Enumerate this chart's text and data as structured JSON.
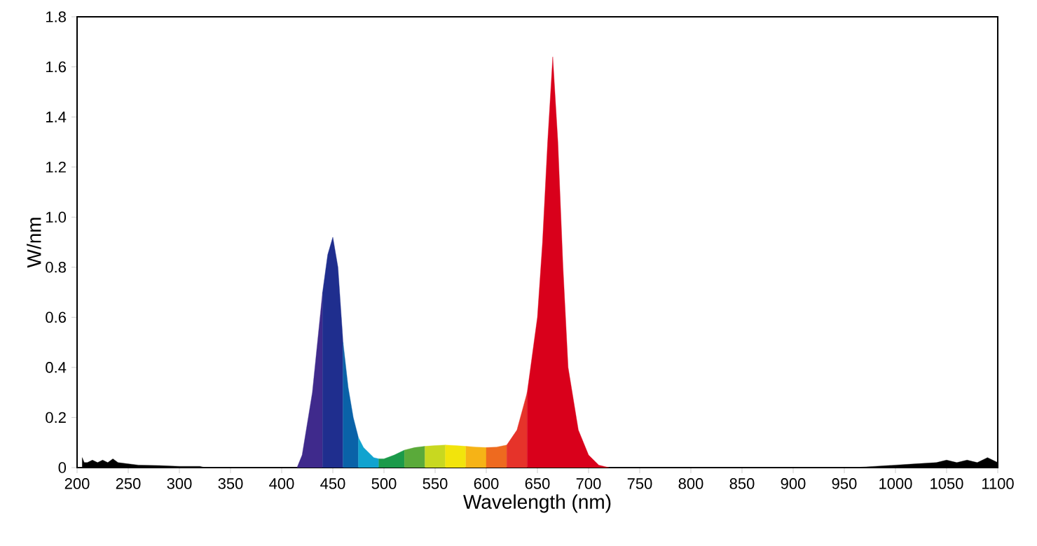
{
  "chart_data": {
    "type": "area",
    "xlabel": "Wavelength (nm)",
    "ylabel": "W/nm",
    "xlim": [
      200,
      1100
    ],
    "ylim": [
      0,
      1.8
    ],
    "xticks": [
      200,
      250,
      300,
      350,
      400,
      450,
      500,
      550,
      600,
      650,
      700,
      750,
      800,
      850,
      900,
      950,
      1000,
      1050,
      1100
    ],
    "yticks": [
      0,
      0.2,
      0.4,
      0.6,
      0.8,
      {
        "value": 1,
        "label": "1.0"
      },
      1.2,
      1.4,
      1.6,
      1.8
    ],
    "series": [
      {
        "color": "#000000",
        "x": [
          205,
          207,
          210,
          215,
          220,
          225,
          230,
          235,
          240,
          250,
          260,
          280,
          300,
          320,
          325
        ],
        "values": [
          0.04,
          0.02,
          0.02,
          0.03,
          0.02,
          0.03,
          0.02,
          0.035,
          0.02,
          0.015,
          0.01,
          0.008,
          0.005,
          0.005,
          0
        ]
      },
      {
        "color": "#3f2a8c",
        "x": [
          415,
          420,
          430,
          440
        ],
        "values": [
          0,
          0.05,
          0.3,
          0.7
        ]
      },
      {
        "color": "#1f2e8e",
        "x": [
          440,
          445,
          450,
          455,
          460
        ],
        "values": [
          0.7,
          0.85,
          0.92,
          0.8,
          0.5
        ]
      },
      {
        "color": "#0a62a8",
        "x": [
          460,
          465,
          470,
          475
        ],
        "values": [
          0.5,
          0.32,
          0.2,
          0.12
        ]
      },
      {
        "color": "#11a3cf",
        "x": [
          475,
          480,
          490,
          495
        ],
        "values": [
          0.12,
          0.08,
          0.04,
          0.035
        ]
      },
      {
        "color": "#1b9a4a",
        "x": [
          495,
          500,
          510,
          520
        ],
        "values": [
          0.035,
          0.035,
          0.05,
          0.07
        ]
      },
      {
        "color": "#5aaa3a",
        "x": [
          520,
          530,
          540
        ],
        "values": [
          0.07,
          0.08,
          0.085
        ]
      },
      {
        "color": "#c8d820",
        "x": [
          540,
          550,
          560
        ],
        "values": [
          0.085,
          0.088,
          0.09
        ]
      },
      {
        "color": "#f2e40c",
        "x": [
          560,
          570,
          580
        ],
        "values": [
          0.09,
          0.088,
          0.085
        ]
      },
      {
        "color": "#f6b316",
        "x": [
          580,
          590,
          600
        ],
        "values": [
          0.085,
          0.082,
          0.08
        ]
      },
      {
        "color": "#ee6a1f",
        "x": [
          600,
          610,
          620
        ],
        "values": [
          0.08,
          0.082,
          0.09
        ]
      },
      {
        "color": "#e6332a",
        "x": [
          620,
          630,
          640
        ],
        "values": [
          0.09,
          0.15,
          0.3
        ]
      },
      {
        "color": "#d9001b",
        "x": [
          640,
          650,
          655,
          660,
          665,
          670,
          675,
          680,
          690,
          700,
          710,
          720
        ],
        "values": [
          0.3,
          0.6,
          0.9,
          1.3,
          1.64,
          1.3,
          0.8,
          0.4,
          0.15,
          0.05,
          0.01,
          0
        ]
      },
      {
        "color": "#000000",
        "x": [
          960,
          980,
          1000,
          1020,
          1040,
          1050,
          1060,
          1070,
          1080,
          1090,
          1100
        ],
        "values": [
          0,
          0.005,
          0.01,
          0.015,
          0.02,
          0.03,
          0.02,
          0.03,
          0.02,
          0.04,
          0.02
        ]
      }
    ]
  }
}
